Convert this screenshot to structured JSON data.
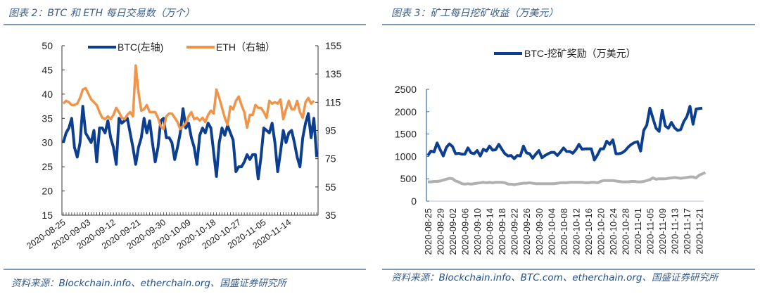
{
  "figure2": {
    "title": "图表 2：BTC 和 ETH 每日交易数（万个）",
    "source_prefix": "资料来源：",
    "source_en": "Blockchain.info、etherchain.org",
    "source_suffix": "、国盛证券研究所"
  },
  "figure3": {
    "title": "图表 3：矿工每日挖矿收益（万美元）",
    "source_prefix": "资料来源：",
    "source_en": "Blockchain.info、BTC.com、etherchain.org",
    "source_suffix": "、国盛证券研究所"
  },
  "chart_data": [
    {
      "type": "line",
      "title": "BTC 和 ETH 每日交易数（万个）",
      "x_range": [
        "2020-08-25",
        "2020-11-23"
      ],
      "x_tick_labels": [
        "2020-08-25",
        "2020-09-03",
        "2020-09-12",
        "2020-09-21",
        "2020-09-30",
        "2020-10-09",
        "2020-10-18",
        "2020-10-27",
        "2020-11-05",
        "2020-11-14"
      ],
      "y_left": {
        "range": [
          15,
          50
        ],
        "ticks": [
          "15",
          "20",
          "25",
          "30",
          "35",
          "40",
          "45",
          "50"
        ]
      },
      "y_right": {
        "range": [
          35,
          155
        ],
        "ticks": [
          "35",
          "55",
          "75",
          "95",
          "115",
          "135",
          "155"
        ]
      },
      "grid": false,
      "legend": "top",
      "series": [
        {
          "name": "BTC(左轴)",
          "axis": "left",
          "color": "#0d3f91",
          "values": [
            30,
            32,
            33,
            35,
            29,
            27,
            30,
            37.5,
            32,
            31,
            30,
            32.5,
            26,
            33,
            33,
            32,
            34.5,
            31,
            29,
            25.5,
            35,
            34,
            34.5,
            35,
            32,
            29,
            25.5,
            29,
            31,
            35,
            32,
            34.5,
            30,
            26,
            29,
            34.5,
            35,
            31,
            31,
            30,
            26.5,
            29,
            32,
            37,
            33,
            34,
            31,
            29,
            25.5,
            31.5,
            33,
            32,
            34,
            33,
            28,
            23,
            30,
            33,
            31.5,
            33.5,
            32,
            30.5,
            24,
            25,
            25,
            26,
            27.5,
            26.5,
            27.5,
            27.5,
            22.5,
            27,
            33,
            32.5,
            32,
            34,
            30,
            24,
            28,
            32.5,
            30,
            32,
            32.5,
            30,
            27,
            25,
            31,
            34,
            36,
            31,
            35,
            27
          ]
        },
        {
          "name": "ETH（右轴）",
          "axis": "right",
          "color": "#f0944a",
          "values": [
            114,
            116,
            115,
            113,
            113,
            114,
            118,
            124,
            125,
            121,
            117,
            115,
            113,
            108,
            104,
            103,
            105,
            103,
            106,
            111,
            108,
            104,
            103,
            106,
            108,
            105,
            141,
            122,
            109,
            110,
            113,
            108,
            108,
            108,
            104,
            98,
            96,
            105,
            107,
            107,
            104,
            101,
            96,
            98,
            100,
            105,
            108,
            103,
            104,
            102,
            104,
            101,
            106,
            109,
            107,
            124,
            118,
            111,
            104,
            99,
            112,
            110,
            116,
            119,
            113,
            108,
            97,
            106,
            106,
            113,
            111,
            111,
            108,
            104,
            116,
            114,
            115,
            114,
            117,
            103,
            110,
            116,
            110,
            110,
            116,
            108,
            104,
            115,
            118,
            114,
            116
          ]
        }
      ]
    },
    {
      "type": "line",
      "title": "矿工每日挖矿收益（万美元）",
      "x_range": [
        "2020-08-25",
        "2020-11-22"
      ],
      "x_tick_labels": [
        "2020-08-25",
        "2020-08-29",
        "2020-09-02",
        "2020-09-06",
        "2020-09-10",
        "2020-09-14",
        "2020-09-18",
        "2020-09-22",
        "2020-09-26",
        "2020-09-30",
        "2020-10-04",
        "2020-10-08",
        "2020-10-12",
        "2020-10-16",
        "2020-10-20",
        "2020-10-24",
        "2020-10-28",
        "2020-11-01",
        "2020-11-05",
        "2020-11-09",
        "2020-11-13",
        "2020-11-17",
        "2020-11-21"
      ],
      "y": {
        "range": [
          0,
          2500
        ],
        "ticks": [
          "0",
          "500",
          "1000",
          "1500",
          "2000",
          "2500"
        ]
      },
      "grid": false,
      "legend": "top",
      "series": [
        {
          "name": "BTC-挖矿奖励（万美元）",
          "color": "#0d3f91",
          "values": [
            1020,
            1120,
            1100,
            1300,
            1150,
            1010,
            1200,
            1280,
            1220,
            1060,
            1070,
            1050,
            1050,
            1190,
            1080,
            1060,
            1130,
            1010,
            1160,
            1120,
            1230,
            1140,
            1150,
            1270,
            1160,
            1060,
            1010,
            1020,
            950,
            1020,
            1010,
            1230,
            1080,
            1060,
            960,
            1050,
            1130,
            970,
            1020,
            1060,
            1090,
            1090,
            1020,
            1100,
            1190,
            1110,
            1110,
            1070,
            1150,
            1270,
            1160,
            1170,
            1170,
            1170,
            920,
            1030,
            1170,
            1170,
            1340,
            1270,
            1370,
            1060,
            1060,
            1080,
            1130,
            1210,
            1270,
            1310,
            1330,
            1120,
            1580,
            1700,
            2080,
            1850,
            1630,
            1560,
            2030,
            1680,
            1630,
            1760,
            1640,
            1580,
            1600,
            1780,
            1890,
            2120,
            1720,
            2060,
            2070,
            2080
          ]
        },
        {
          "color": "#b0b0b0",
          "values": [
            430,
            430,
            440,
            440,
            450,
            470,
            490,
            510,
            500,
            450,
            430,
            390,
            380,
            390,
            380,
            390,
            400,
            410,
            420,
            410,
            420,
            410,
            420,
            420,
            420,
            410,
            380,
            380,
            370,
            380,
            390,
            400,
            400,
            410,
            400,
            390,
            390,
            390,
            390,
            390,
            390,
            390,
            400,
            410,
            410,
            410,
            420,
            420,
            420,
            420,
            420,
            410,
            410,
            420,
            420,
            410,
            440,
            460,
            460,
            460,
            460,
            450,
            440,
            430,
            430,
            430,
            440,
            440,
            430,
            430,
            440,
            460,
            480,
            520,
            490,
            500,
            500,
            500,
            510,
            520,
            530,
            520,
            510,
            520,
            530,
            540,
            540,
            520,
            580,
            610,
            640
          ]
        }
      ]
    }
  ]
}
